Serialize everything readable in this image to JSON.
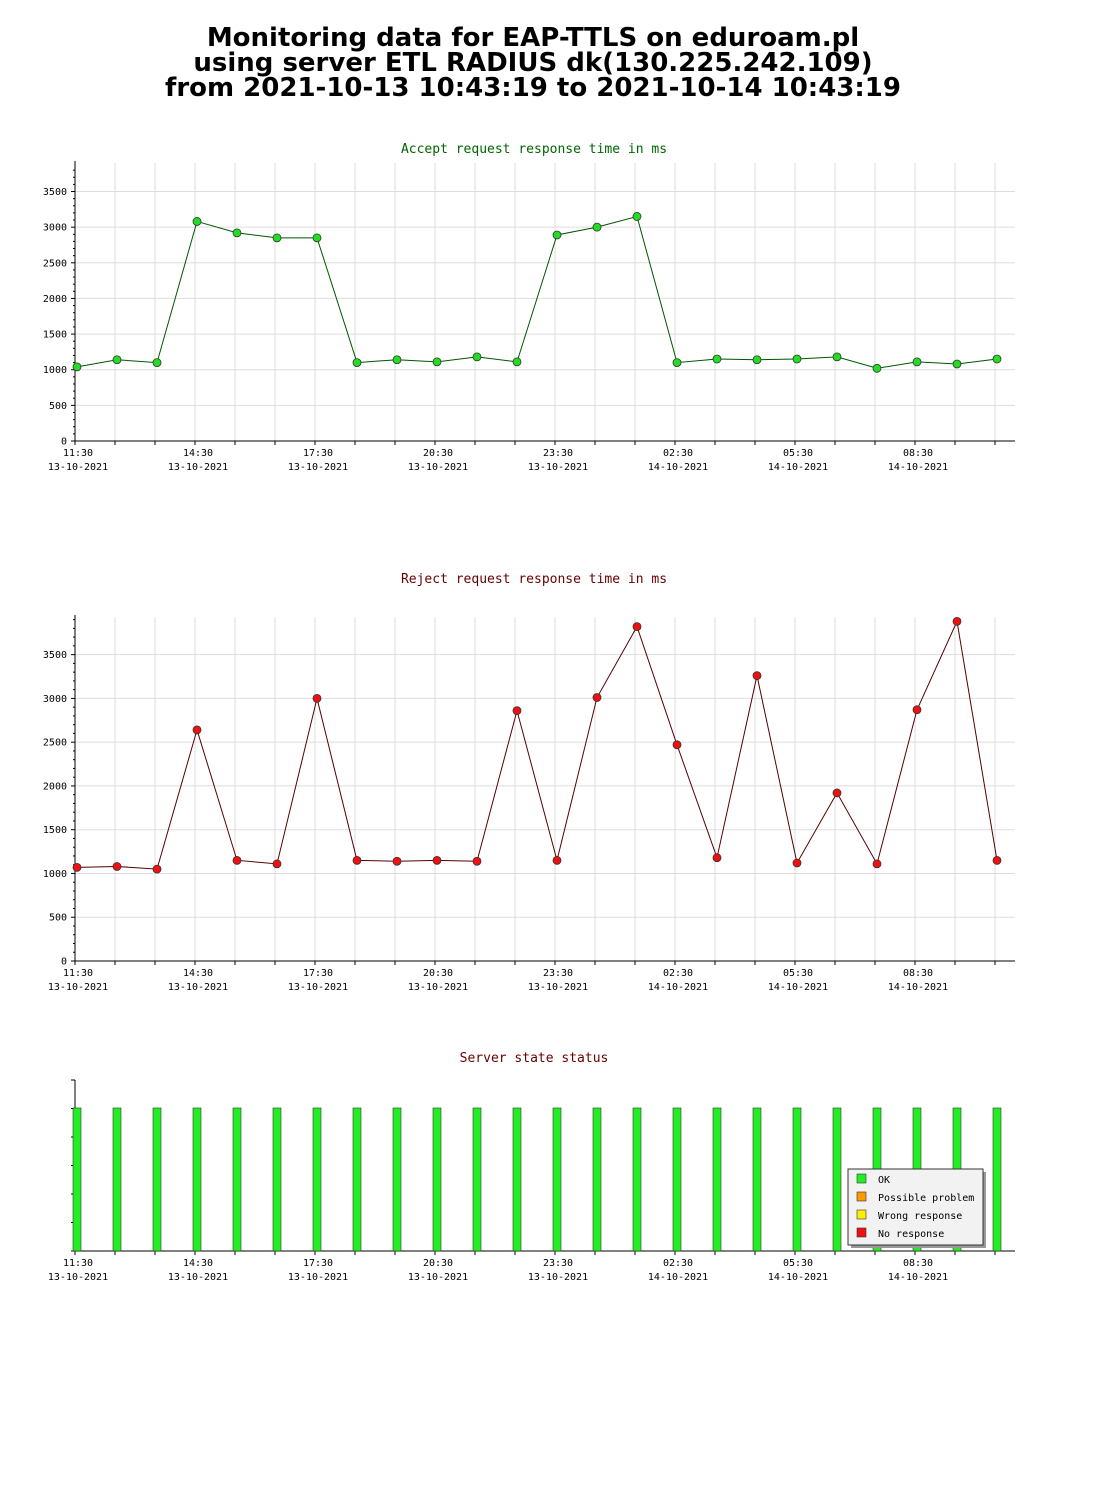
{
  "header": {
    "line1": "Monitoring data for EAP-TTLS on eduroam.pl",
    "line2": "using server ETL RADIUS dk(130.225.242.109)",
    "line3": "from 2021-10-13 10:43:19 to 2021-10-14 10:43:19"
  },
  "x_ticks": [
    {
      "time": "11:30",
      "date": "13-10-2021"
    },
    {
      "time": "14:30",
      "date": "13-10-2021"
    },
    {
      "time": "17:30",
      "date": "13-10-2021"
    },
    {
      "time": "20:30",
      "date": "13-10-2021"
    },
    {
      "time": "23:30",
      "date": "13-10-2021"
    },
    {
      "time": "02:30",
      "date": "14-10-2021"
    },
    {
      "time": "05:30",
      "date": "14-10-2021"
    },
    {
      "time": "08:30",
      "date": "14-10-2021"
    }
  ],
  "chart_data": [
    {
      "type": "line",
      "title": "Accept request response time in ms",
      "title_color": "#006600",
      "line_color": "#005500",
      "marker_color": "#22dd22",
      "ylim": [
        0,
        3900
      ],
      "yticks": [
        0,
        500,
        1000,
        1500,
        2000,
        2500,
        3000,
        3500
      ],
      "grid": true,
      "x": [
        "2021-10-13 11:33",
        "2021-10-13 12:33",
        "2021-10-13 13:33",
        "2021-10-13 14:33",
        "2021-10-13 15:33",
        "2021-10-13 16:33",
        "2021-10-13 17:33",
        "2021-10-13 18:33",
        "2021-10-13 19:33",
        "2021-10-13 20:33",
        "2021-10-13 21:33",
        "2021-10-13 22:33",
        "2021-10-13 23:33",
        "2021-10-14 00:33",
        "2021-10-14 01:33",
        "2021-10-14 02:33",
        "2021-10-14 03:33",
        "2021-10-14 04:33",
        "2021-10-14 05:33",
        "2021-10-14 06:33",
        "2021-10-14 07:33",
        "2021-10-14 08:33",
        "2021-10-14 09:33",
        "2021-10-14 10:33"
      ],
      "series": [
        {
          "values": [
            1040,
            1140,
            1100,
            3080,
            2920,
            2850,
            2850,
            1100,
            1140,
            1110,
            1180,
            1110,
            2890,
            3000,
            3150,
            1100,
            1150,
            1140,
            1150,
            1180,
            1020,
            1110,
            1080,
            1150
          ]
        }
      ]
    },
    {
      "type": "line",
      "title": "Reject request response time in ms",
      "title_color": "#660000",
      "line_color": "#550000",
      "marker_color": "#ee1111",
      "ylim": [
        0,
        3930
      ],
      "yticks": [
        0,
        500,
        1000,
        1500,
        2000,
        2500,
        3000,
        3500
      ],
      "grid": true,
      "x": [
        "2021-10-13 11:33",
        "2021-10-13 12:33",
        "2021-10-13 13:33",
        "2021-10-13 14:33",
        "2021-10-13 15:33",
        "2021-10-13 16:33",
        "2021-10-13 17:33",
        "2021-10-13 18:33",
        "2021-10-13 19:33",
        "2021-10-13 20:33",
        "2021-10-13 21:33",
        "2021-10-13 22:33",
        "2021-10-13 23:33",
        "2021-10-14 00:33",
        "2021-10-14 01:33",
        "2021-10-14 02:33",
        "2021-10-14 03:33",
        "2021-10-14 04:33",
        "2021-10-14 05:33",
        "2021-10-14 06:33",
        "2021-10-14 07:33",
        "2021-10-14 08:33",
        "2021-10-14 09:33",
        "2021-10-14 10:33"
      ],
      "series": [
        {
          "values": [
            1070,
            1080,
            1050,
            2640,
            1150,
            1110,
            3000,
            1150,
            1140,
            1150,
            1140,
            2860,
            1150,
            3010,
            3820,
            2470,
            1180,
            3260,
            1120,
            1920,
            1110,
            2870,
            3880,
            1150
          ]
        }
      ]
    },
    {
      "type": "bar",
      "title": "Server state status",
      "title_color": "#660000",
      "grid": false,
      "x": [
        "2021-10-13 11:33",
        "2021-10-13 12:33",
        "2021-10-13 13:33",
        "2021-10-13 14:33",
        "2021-10-13 15:33",
        "2021-10-13 16:33",
        "2021-10-13 17:33",
        "2021-10-13 18:33",
        "2021-10-13 19:33",
        "2021-10-13 20:33",
        "2021-10-13 21:33",
        "2021-10-13 22:33",
        "2021-10-13 23:33",
        "2021-10-14 00:33",
        "2021-10-14 01:33",
        "2021-10-14 02:33",
        "2021-10-14 03:33",
        "2021-10-14 04:33",
        "2021-10-14 05:33",
        "2021-10-14 06:33",
        "2021-10-14 07:33",
        "2021-10-14 08:33",
        "2021-10-14 09:33",
        "2021-10-14 10:33"
      ],
      "states": [
        "OK",
        "OK",
        "OK",
        "OK",
        "OK",
        "OK",
        "OK",
        "OK",
        "OK",
        "OK",
        "OK",
        "OK",
        "OK",
        "OK",
        "OK",
        "OK",
        "OK",
        "OK",
        "OK",
        "OK",
        "OK",
        "OK",
        "OK",
        "OK"
      ],
      "legend_position": "bottom-right",
      "legend": [
        {
          "label": "OK",
          "color": "#22ee22"
        },
        {
          "label": "Possible problem",
          "color": "#ff9900"
        },
        {
          "label": "Wrong response",
          "color": "#ffee00"
        },
        {
          "label": "No response",
          "color": "#ee1111"
        }
      ]
    }
  ]
}
